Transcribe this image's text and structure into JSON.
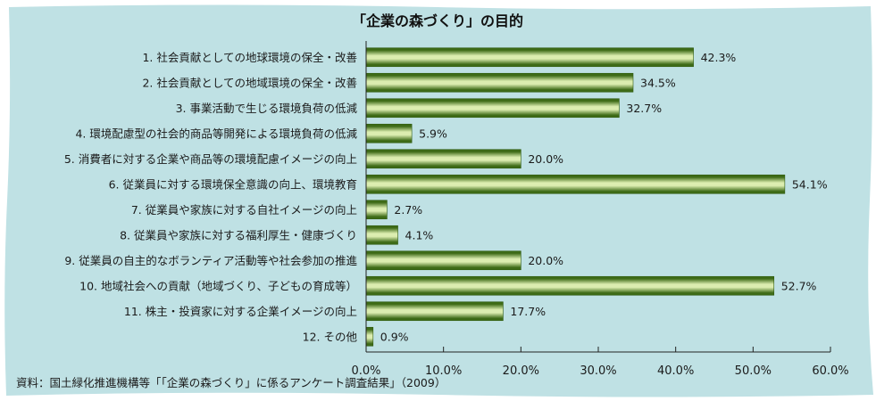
{
  "chart_data": {
    "type": "bar",
    "orientation": "horizontal",
    "title": "「企業の森づくり」の目的",
    "categories": [
      "1. 社会貢献としての地球環境の保全・改善",
      "2. 社会貢献としての地域環境の保全・改善",
      "3. 事業活動で生じる環境負荷の低減",
      "4. 環境配慮型の社会的商品等開発による環境負荷の低減",
      "5. 消費者に対する企業や商品等の環境配慮イメージの向上",
      "6. 従業員に対する環境保全意識の向上、環境教育",
      "7. 従業員や家族に対する自社イメージの向上",
      "8. 従業員や家族に対する福利厚生・健康づくり",
      "9. 従業員の自主的なボランティア活動等や社会参加の推進",
      "10. 地域社会への貢献（地域づくり、子どもの育成等）",
      "11. 株主・投資家に対する企業イメージの向上",
      "12. その他"
    ],
    "values": [
      42.3,
      34.5,
      32.7,
      5.9,
      20.0,
      54.1,
      2.7,
      4.1,
      20.0,
      52.7,
      17.7,
      0.9
    ],
    "value_labels": [
      "42.3%",
      "34.5%",
      "32.7%",
      "5.9%",
      "20.0%",
      "54.1%",
      "2.7%",
      "4.1%",
      "20.0%",
      "52.7%",
      "17.7%",
      "0.9%"
    ],
    "xlim": [
      0,
      60
    ],
    "xticks": [
      "0.0%",
      "10.0%",
      "20.0%",
      "30.0%",
      "40.0%",
      "50.0%",
      "60.0%"
    ],
    "grid": false,
    "legend": "none",
    "source": "資料：国土緑化推進機構等「「企業の森づくり」に係るアンケート調査結果」（2009）",
    "colors": {
      "background": "#bfe1e4",
      "bar_light": "#dcedb0",
      "bar_dark": "#3e6b17",
      "axis": "#222222"
    }
  }
}
